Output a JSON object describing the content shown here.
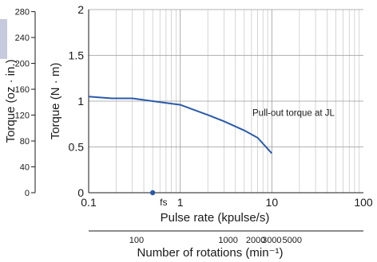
{
  "chart_data": {
    "type": "line",
    "x_scale": "log",
    "xlim": [
      0.1,
      100
    ],
    "ylim": [
      0,
      2
    ],
    "grid": true,
    "xlabel": "Pulse rate (kpulse/s)",
    "ylabel": "Torque (N · m)",
    "ylabel_secondary": "Torque (oz · in.)",
    "x_ticks": [
      {
        "value": 0.1,
        "label": "0.1"
      },
      {
        "value": 1,
        "label": "1"
      },
      {
        "value": 10,
        "label": "10"
      },
      {
        "value": 100,
        "label": "100"
      }
    ],
    "y_ticks": [
      {
        "value": 0,
        "label": "0"
      },
      {
        "value": 0.5,
        "label": "0.5"
      },
      {
        "value": 1,
        "label": "1"
      },
      {
        "value": 1.5,
        "label": "1.5"
      },
      {
        "value": 2,
        "label": "2"
      }
    ],
    "y2_ticks": [
      {
        "value": 0,
        "label": "0"
      },
      {
        "value": 40,
        "label": "40"
      },
      {
        "value": 80,
        "label": "80"
      },
      {
        "value": 120,
        "label": "120"
      },
      {
        "value": 160,
        "label": "160"
      },
      {
        "value": 200,
        "label": "200"
      },
      {
        "value": 240,
        "label": "240"
      },
      {
        "value": 280,
        "label": "280"
      }
    ],
    "y2_per_y": 141.6,
    "secondary_x_axis": {
      "label": "Number of rotations (min⁻¹)",
      "ticks": [
        {
          "value": 100,
          "label": "100",
          "at_pulse_rate": 0.333
        },
        {
          "value": 1000,
          "label": "1000",
          "at_pulse_rate": 3.333
        },
        {
          "value": 2000,
          "label": "2000",
          "at_pulse_rate": 6.667
        },
        {
          "value": 3000,
          "label": "3000",
          "at_pulse_rate": 10
        },
        {
          "value": 5000,
          "label": "5000",
          "at_pulse_rate": 16.667
        }
      ]
    },
    "series": [
      {
        "name": "Pull-out torque at JL",
        "color": "#2a5aa8",
        "x": [
          0.1,
          0.18,
          0.3,
          0.5,
          1,
          2,
          3,
          5,
          7,
          10
        ],
        "y": [
          1.05,
          1.03,
          1.03,
          1.0,
          0.96,
          0.85,
          0.78,
          0.68,
          0.6,
          0.43
        ]
      }
    ],
    "annotations": [
      {
        "text": "fs",
        "x": 0.5,
        "y": 0,
        "marker": "point",
        "color": "#2a5aa8"
      }
    ]
  }
}
